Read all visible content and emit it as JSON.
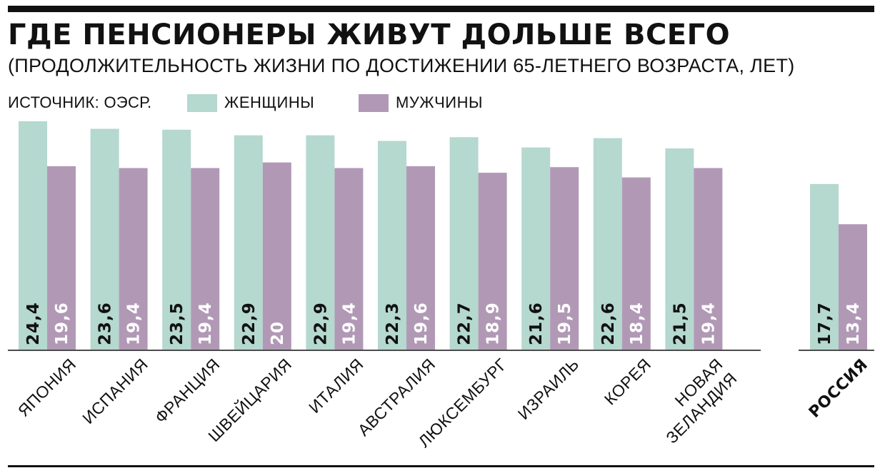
{
  "header": {
    "title": "ГДЕ ПЕНСИОНЕРЫ ЖИВУТ ДОЛЬШЕ ВСЕГО",
    "subtitle": "(ПРОДОЛЖИТЕЛЬНОСТЬ ЖИЗНИ ПО ДОСТИЖЕНИИ 65-ЛЕТНЕГО ВОЗРАСТА, ЛЕТ)",
    "source": "ИСТОЧНИК: ОЭСР."
  },
  "colors": {
    "women": "#b5d8cf",
    "men": "#b199b6",
    "text_on_women": "#111111",
    "text_on_men": "#ffffff",
    "rule": "#111111"
  },
  "chart_data": {
    "type": "bar",
    "title": "ГДЕ ПЕНСИОНЕРЫ ЖИВУТ ДОЛЬШЕ ВСЕГО",
    "subtitle": "(ПРОДОЛЖИТЕЛЬНОСТЬ ЖИЗНИ ПО ДОСТИЖЕНИИ 65-ЛЕТНЕГО ВОЗРАСТА, ЛЕТ)",
    "categories": [
      "ЯПОНИЯ",
      "ИСПАНИЯ",
      "ФРАНЦИЯ",
      "ШВЕЙЦАРИЯ",
      "ИТАЛИЯ",
      "АВСТРАЛИЯ",
      "ЛЮКСЕМБУРГ",
      "ИЗРАИЛЬ",
      "КОРЕЯ",
      "НОВАЯ ЗЕЛАНДИЯ",
      "РОССИЯ"
    ],
    "highlight_category": "РОССИЯ",
    "series": [
      {
        "name": "ЖЕНЩИНЫ",
        "color": "#b5d8cf",
        "values": [
          24.4,
          23.6,
          23.5,
          22.9,
          22.9,
          22.3,
          22.7,
          21.6,
          22.6,
          21.5,
          17.7
        ],
        "labels": [
          "24,4",
          "23,6",
          "23,5",
          "22,9",
          "22,9",
          "22,3",
          "22,7",
          "21,6",
          "22,6",
          "21,5",
          "17,7"
        ]
      },
      {
        "name": "МУЖЧИНЫ",
        "color": "#b199b6",
        "values": [
          19.6,
          19.4,
          19.4,
          20,
          19.4,
          19.6,
          18.9,
          19.5,
          18.4,
          19.4,
          13.4
        ],
        "labels": [
          "19,6",
          "19,4",
          "19,4",
          "20",
          "19,4",
          "19,6",
          "18,9",
          "19,5",
          "18,4",
          "19,4",
          "13,4"
        ]
      }
    ],
    "legend_position": "top",
    "grid": false,
    "xlabel": "",
    "ylabel": ""
  }
}
